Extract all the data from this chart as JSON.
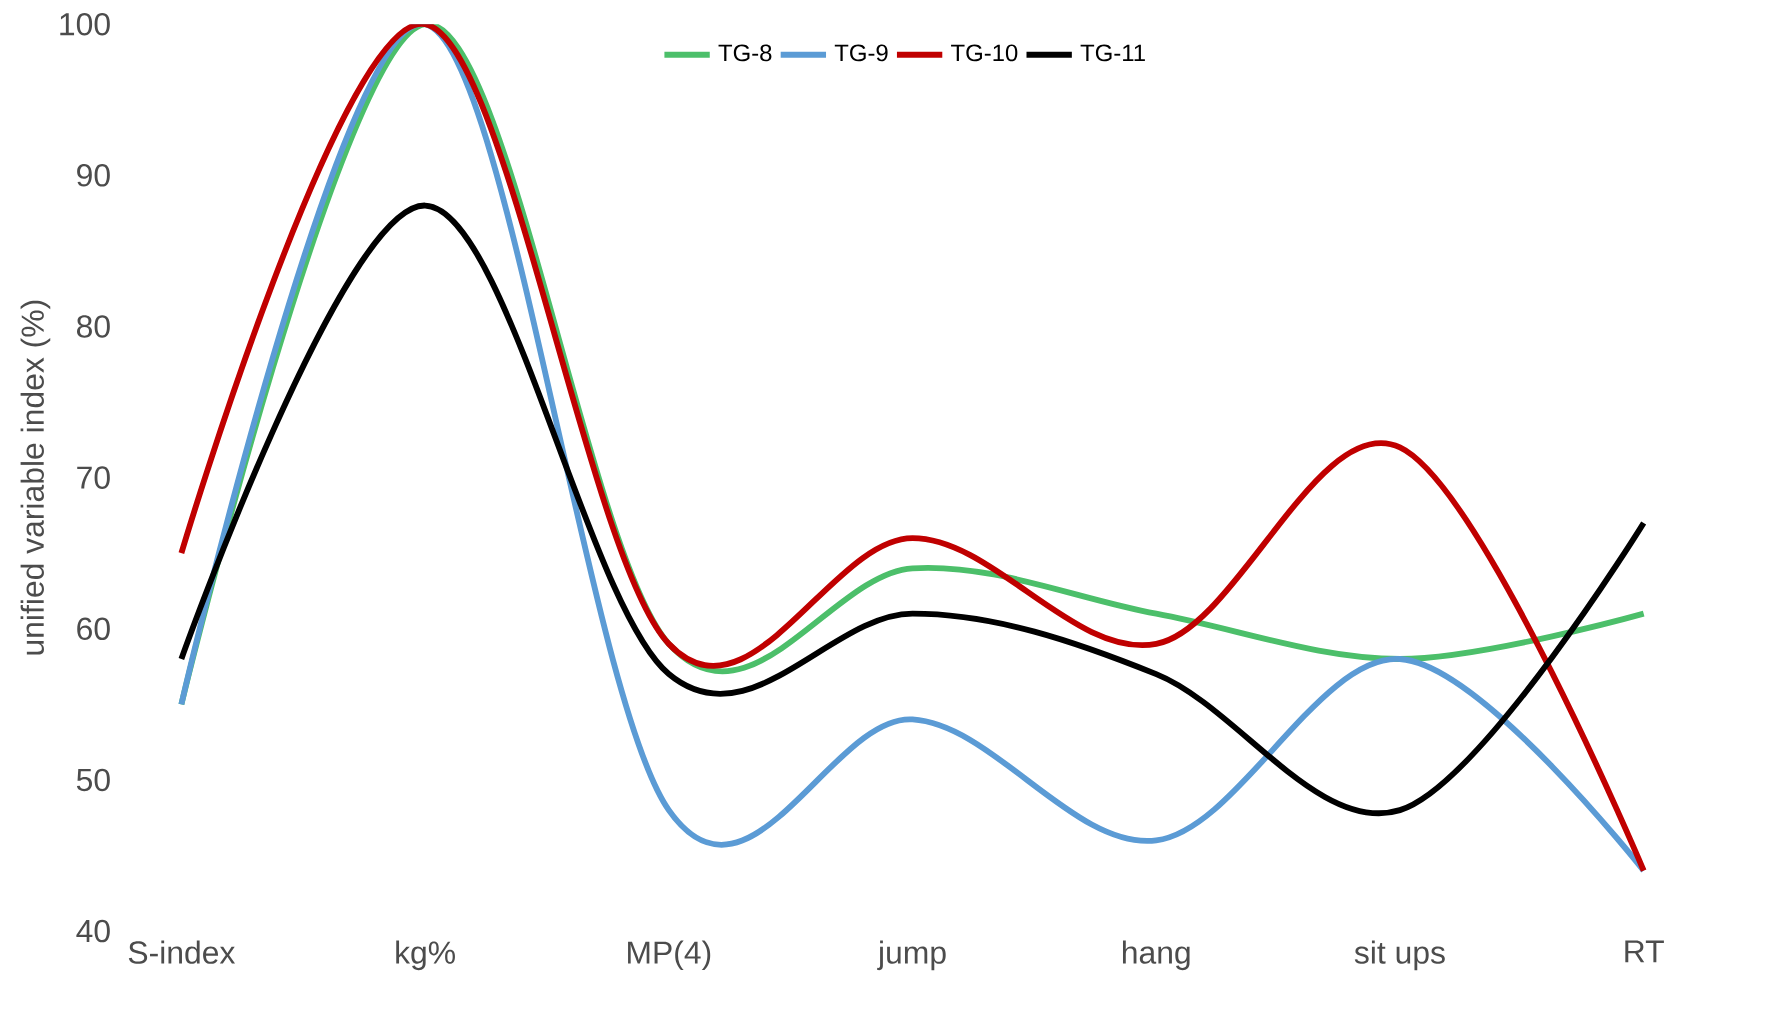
{
  "chart_data": {
    "type": "line",
    "ylabel": "unified variable index (%)",
    "categories": [
      "S-index",
      "kg%",
      "MP(4)",
      "jump",
      "hang",
      "sit ups",
      "RT"
    ],
    "series": [
      {
        "name": "TG-8",
        "color": "#4cbf6a",
        "values": [
          55,
          100,
          59,
          64,
          61,
          58,
          61
        ]
      },
      {
        "name": "TG-9",
        "color": "#5b9bd5",
        "values": [
          55,
          100,
          48,
          54,
          46,
          58,
          44
        ]
      },
      {
        "name": "TG-10",
        "color": "#c00000",
        "values": [
          65,
          100,
          59,
          66,
          59,
          72,
          44
        ]
      },
      {
        "name": "TG-11",
        "color": "#000000",
        "values": [
          58,
          88,
          57,
          61,
          57,
          48,
          67
        ]
      }
    ],
    "ylim": [
      40,
      100
    ],
    "yticks": [
      40,
      50,
      60,
      70,
      80,
      90,
      100
    ],
    "legend": "top",
    "grid": false
  }
}
